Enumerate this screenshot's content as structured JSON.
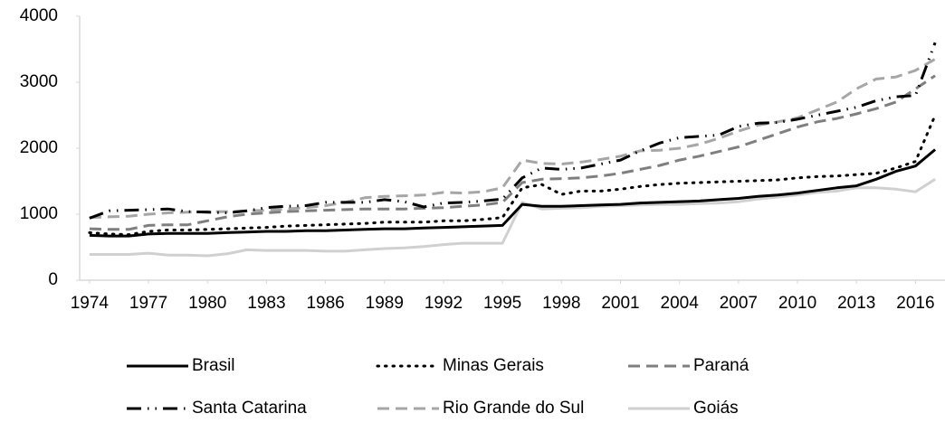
{
  "chart_data": {
    "type": "line",
    "x": [
      1974,
      1975,
      1976,
      1977,
      1978,
      1979,
      1980,
      1981,
      1982,
      1983,
      1984,
      1985,
      1986,
      1987,
      1988,
      1989,
      1990,
      1991,
      1992,
      1993,
      1994,
      1995,
      1996,
      1997,
      1998,
      1999,
      2000,
      2001,
      2002,
      2003,
      2004,
      2005,
      2006,
      2007,
      2008,
      2009,
      2010,
      2011,
      2012,
      2013,
      2014,
      2015,
      2016,
      2017
    ],
    "xlim": [
      1973.5,
      2017.5
    ],
    "xticks": [
      1974,
      1977,
      1980,
      1983,
      1986,
      1989,
      1992,
      1995,
      1998,
      2001,
      2004,
      2007,
      2010,
      2013,
      2016
    ],
    "ylim": [
      0,
      4000
    ],
    "yticks": [
      0,
      1000,
      2000,
      3000,
      4000
    ],
    "grid": false,
    "legend": "bottom",
    "series": [
      {
        "name": "Brasil",
        "color": "#000000",
        "line_style": "solid",
        "values": [
          680,
          670,
          670,
          700,
          710,
          710,
          710,
          720,
          730,
          740,
          740,
          750,
          750,
          760,
          770,
          780,
          780,
          790,
          800,
          810,
          820,
          830,
          1150,
          1120,
          1120,
          1130,
          1140,
          1150,
          1170,
          1180,
          1190,
          1200,
          1220,
          1240,
          1270,
          1290,
          1320,
          1360,
          1400,
          1430,
          1530,
          1650,
          1730,
          1980
        ]
      },
      {
        "name": "Minas Gerais",
        "color": "#000000",
        "line_style": "dotted",
        "values": [
          720,
          700,
          690,
          740,
          760,
          760,
          770,
          780,
          790,
          800,
          820,
          830,
          840,
          850,
          860,
          880,
          880,
          880,
          900,
          900,
          920,
          950,
          1400,
          1450,
          1300,
          1350,
          1350,
          1380,
          1420,
          1450,
          1470,
          1480,
          1490,
          1500,
          1510,
          1520,
          1550,
          1570,
          1580,
          1600,
          1620,
          1700,
          1800,
          2500
        ]
      },
      {
        "name": "Paraná",
        "color": "#7f7f7f",
        "line_style": "dashed",
        "values": [
          780,
          770,
          770,
          830,
          840,
          840,
          900,
          960,
          1000,
          1020,
          1040,
          1050,
          1060,
          1070,
          1080,
          1080,
          1080,
          1090,
          1100,
          1120,
          1140,
          1180,
          1480,
          1530,
          1540,
          1550,
          1580,
          1620,
          1680,
          1740,
          1820,
          1880,
          1950,
          2020,
          2120,
          2220,
          2320,
          2400,
          2450,
          2520,
          2600,
          2700,
          2900,
          3100
        ]
      },
      {
        "name": "Santa Catarina",
        "color": "#000000",
        "line_style": "dashdot",
        "values": [
          940,
          1050,
          1060,
          1070,
          1080,
          1040,
          1030,
          1020,
          1050,
          1100,
          1120,
          1130,
          1180,
          1180,
          1180,
          1220,
          1190,
          1110,
          1170,
          1180,
          1200,
          1230,
          1550,
          1700,
          1680,
          1700,
          1760,
          1820,
          1960,
          2080,
          2160,
          2180,
          2200,
          2330,
          2380,
          2390,
          2440,
          2500,
          2560,
          2620,
          2720,
          2780,
          2800,
          3600
        ]
      },
      {
        "name": "Rio Grande do Sul",
        "color": "#a6a6a6",
        "line_style": "dashed",
        "values": [
          950,
          960,
          970,
          1000,
          1020,
          1030,
          1040,
          1040,
          1050,
          1060,
          1080,
          1100,
          1130,
          1180,
          1250,
          1270,
          1280,
          1290,
          1330,
          1320,
          1340,
          1400,
          1820,
          1770,
          1760,
          1790,
          1830,
          1880,
          1960,
          1970,
          2000,
          2060,
          2150,
          2260,
          2350,
          2400,
          2460,
          2580,
          2700,
          2900,
          3050,
          3080,
          3180,
          3350
        ]
      },
      {
        "name": "Goiás",
        "color": "#d0d0d0",
        "line_style": "solid",
        "values": [
          390,
          390,
          390,
          410,
          380,
          380,
          370,
          400,
          460,
          450,
          450,
          450,
          440,
          440,
          460,
          480,
          490,
          510,
          540,
          560,
          560,
          560,
          1180,
          1080,
          1090,
          1100,
          1120,
          1130,
          1140,
          1150,
          1150,
          1160,
          1170,
          1190,
          1230,
          1260,
          1290,
          1330,
          1350,
          1400,
          1400,
          1380,
          1340,
          1530
        ]
      }
    ]
  }
}
